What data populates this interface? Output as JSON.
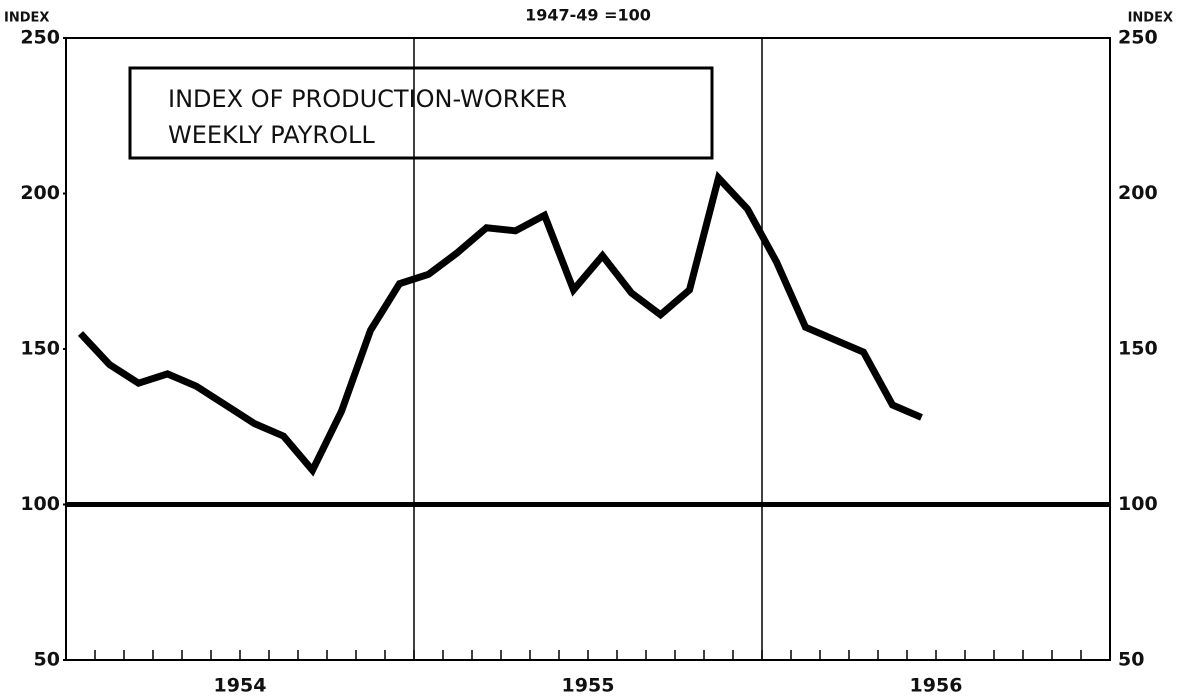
{
  "chart_data": {
    "type": "line",
    "axis_title": "INDEX",
    "subtitle": "1947-49 =100",
    "annotation": [
      "INDEX OF PRODUCTION-WORKER",
      "WEEKLY PAYROLL"
    ],
    "year_labels": [
      "1954",
      "1955",
      "1956"
    ],
    "categories": [
      null,
      null,
      null,
      null,
      null,
      null,
      null,
      null,
      null,
      null,
      null,
      null,
      null,
      null,
      null,
      null,
      null,
      null,
      null,
      null,
      null,
      null,
      null,
      null,
      null,
      null,
      null,
      null,
      null,
      null,
      null,
      null,
      null,
      null,
      null,
      null
    ],
    "series": [
      {
        "color": "#000000",
        "values": [
          155,
          145,
          139,
          142,
          138,
          132,
          126,
          122,
          111,
          130,
          156,
          171,
          174,
          181,
          189,
          188,
          193,
          169,
          180,
          168,
          161,
          169,
          205,
          195,
          178,
          157,
          153,
          149,
          132,
          128,
          null,
          null,
          null,
          null,
          null,
          null
        ]
      }
    ],
    "ylim": [
      50,
      250
    ],
    "yticks": [
      50,
      100,
      150,
      200,
      250
    ],
    "reference_line": 100
  }
}
